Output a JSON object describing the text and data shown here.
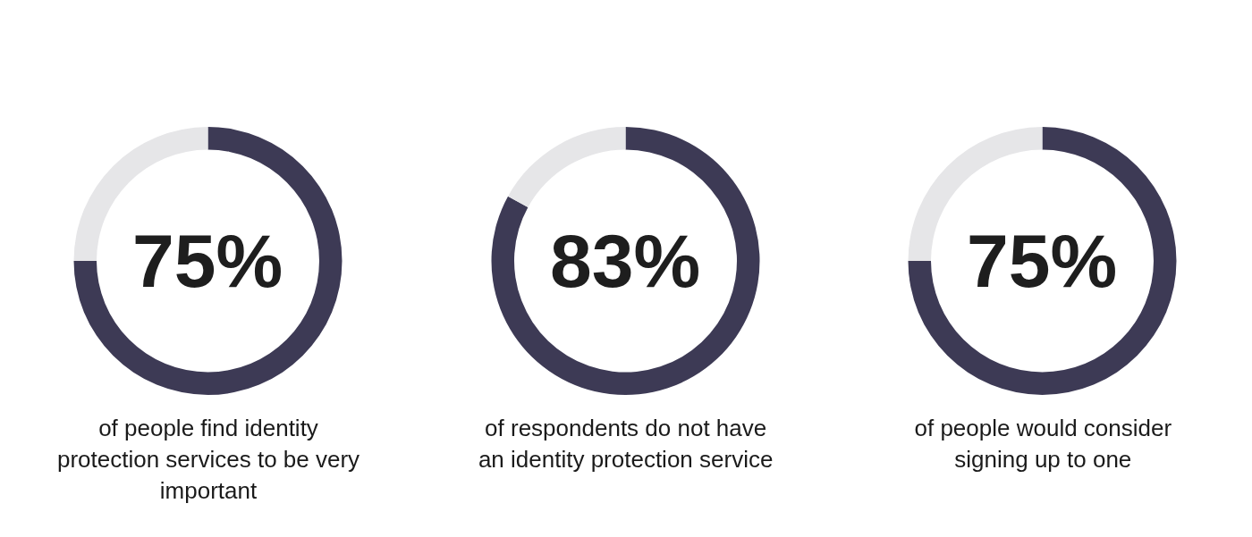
{
  "chart_data": [
    {
      "type": "donut",
      "categories": [
        null,
        null
      ],
      "values": [
        75,
        25
      ],
      "colors": [
        "#3d3a55",
        "#e6e6e8"
      ],
      "value_labels": [
        "75%",
        null
      ],
      "annotations": [
        "of people find identity protection services to be very important"
      ]
    },
    {
      "type": "donut",
      "categories": [
        null,
        null
      ],
      "values": [
        83,
        17
      ],
      "colors": [
        "#3d3a55",
        "#e6e6e8"
      ],
      "value_labels": [
        "83%",
        null
      ],
      "annotations": [
        "of respondents do not have an identity protection service"
      ]
    },
    {
      "type": "donut",
      "categories": [
        null,
        null
      ],
      "values": [
        75,
        25
      ],
      "colors": [
        "#3d3a55",
        "#e6e6e8"
      ],
      "value_labels": [
        "75%",
        null
      ],
      "annotations": [
        "of people would consider signing up to one"
      ]
    }
  ]
}
